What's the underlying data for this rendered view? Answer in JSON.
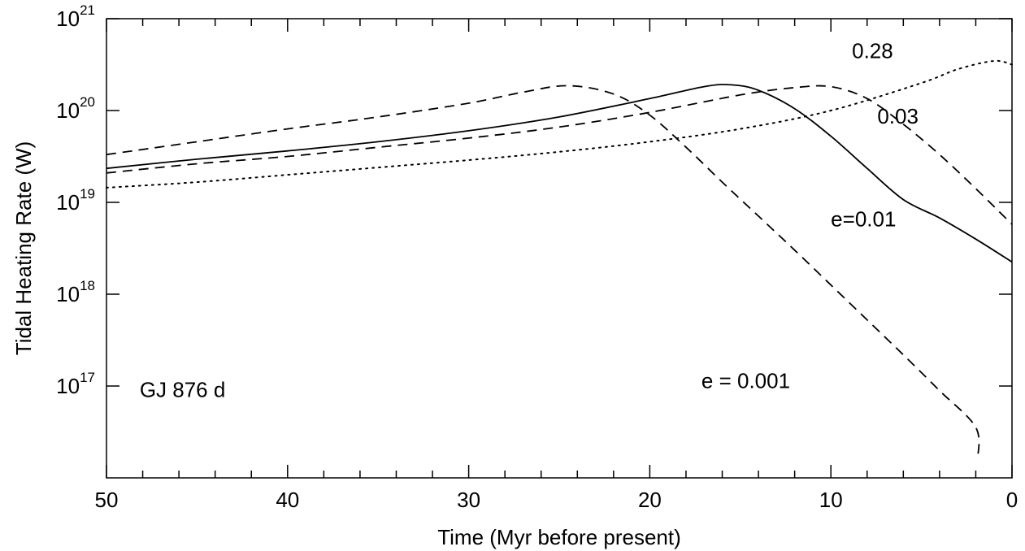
{
  "chart_data": {
    "type": "line",
    "xlabel": "Time (Myr before present)",
    "ylabel": "Tidal Heating Rate (W)",
    "xlim": [
      50,
      0
    ],
    "ylim_log10": [
      16,
      21
    ],
    "y_scale": "log",
    "x_ticks": [
      50,
      40,
      30,
      20,
      10,
      0
    ],
    "y_ticks": [
      {
        "base": "10",
        "exp": "21",
        "log": 21
      },
      {
        "base": "10",
        "exp": "20",
        "log": 20
      },
      {
        "base": "10",
        "exp": "19",
        "log": 19
      },
      {
        "base": "10",
        "exp": "18",
        "log": 18
      },
      {
        "base": "10",
        "exp": "17",
        "log": 17
      }
    ],
    "grid": false,
    "series": [
      {
        "name": "e=0.01",
        "style": "solid",
        "x": [
          50,
          45,
          40,
          35,
          30,
          25,
          20,
          17,
          15.5,
          14,
          12,
          10,
          8,
          6,
          4,
          2,
          0
        ],
        "y_log10": [
          19.37,
          19.47,
          19.56,
          19.66,
          19.78,
          19.93,
          20.13,
          20.26,
          20.28,
          20.22,
          20.02,
          19.72,
          19.37,
          19.03,
          18.83,
          18.6,
          18.35
        ]
      },
      {
        "name": "0.03",
        "style": "dashed",
        "x": [
          50,
          45,
          40,
          35,
          30,
          25,
          20,
          15,
          12,
          10,
          8,
          6,
          4,
          2,
          0
        ],
        "y_log10": [
          19.32,
          19.42,
          19.5,
          19.6,
          19.7,
          19.82,
          19.98,
          20.17,
          20.25,
          20.26,
          20.13,
          19.85,
          19.52,
          19.15,
          18.76
        ]
      },
      {
        "name": "e = 0.001",
        "style": "dashed",
        "x": [
          50,
          45,
          40,
          35,
          30,
          27,
          24.5,
          22,
          20,
          18,
          16,
          14,
          12,
          10,
          8,
          6,
          4,
          2,
          1.9
        ],
        "y_log10": [
          19.52,
          19.66,
          19.8,
          19.93,
          20.08,
          20.2,
          20.27,
          20.18,
          19.95,
          19.6,
          19.22,
          18.85,
          18.48,
          18.1,
          17.72,
          17.34,
          16.95,
          16.55,
          16.2
        ]
      },
      {
        "name": "0.28",
        "style": "dotted",
        "x": [
          50,
          45,
          40,
          35,
          30,
          25,
          20,
          15,
          10,
          5,
          3,
          1,
          0
        ],
        "y_log10": [
          19.16,
          19.22,
          19.3,
          19.38,
          19.46,
          19.55,
          19.66,
          19.8,
          20.0,
          20.3,
          20.45,
          20.54,
          20.5
        ]
      }
    ],
    "annotations": [
      {
        "text": "0.28",
        "x": 7.7,
        "y_log10": 20.57
      },
      {
        "text": "0.03",
        "x": 6.3,
        "y_log10": 19.86
      },
      {
        "text": "e=0.01",
        "x": 8.2,
        "y_log10": 18.74
      },
      {
        "text": "e = 0.001",
        "x": 14.7,
        "y_log10": 16.98
      },
      {
        "text": "GJ 876 d",
        "x": 45.8,
        "y_log10": 16.88
      }
    ]
  }
}
